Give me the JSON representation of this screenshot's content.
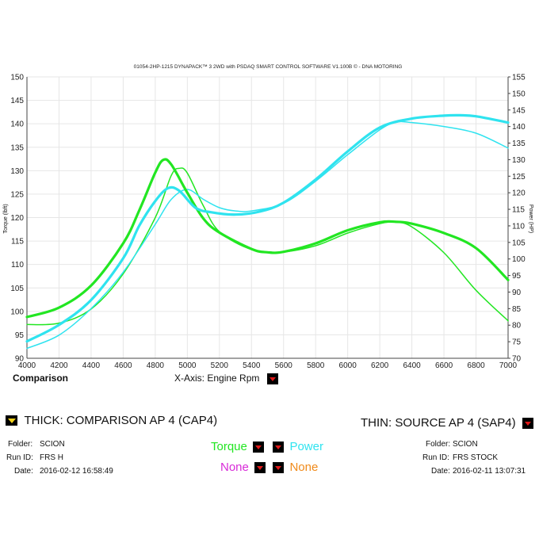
{
  "chart_data": {
    "type": "line",
    "title": "01054-2HP-1215 DYNAPACK™ 3 2WD with PSDAQ SMART CONTROL SOFTWARE V1.100B © - DNA MOTORING",
    "xlabel": "X-Axis: Engine Rpm",
    "ylabel_left": "Torque (lbft)",
    "ylabel_right": "Power (HP)",
    "xlim": [
      4000,
      7000
    ],
    "ylim_left": [
      90,
      150
    ],
    "ylim_right": [
      70,
      155
    ],
    "x_ticks": [
      4000,
      4200,
      4400,
      4600,
      4800,
      5000,
      5200,
      5400,
      5600,
      5800,
      6000,
      6200,
      6400,
      6600,
      6800,
      7000
    ],
    "y_ticks_left": [
      90,
      95,
      100,
      105,
      110,
      115,
      120,
      125,
      130,
      135,
      140,
      145,
      150
    ],
    "y_ticks_right": [
      70,
      75,
      80,
      85,
      90,
      95,
      100,
      105,
      110,
      115,
      120,
      125,
      130,
      135,
      140,
      145,
      150,
      155
    ],
    "grid": true,
    "series": [
      {
        "name": "Torque",
        "run": "CAP4",
        "axis": "left",
        "color": "#22e622",
        "thick": true,
        "x": [
          4000,
          4200,
          4400,
          4600,
          4700,
          4800,
          4850,
          4900,
          5000,
          5100,
          5200,
          5400,
          5500,
          5600,
          5800,
          6000,
          6200,
          6300,
          6400,
          6600,
          6800,
          7000
        ],
        "y": [
          98.8,
          100.8,
          105.5,
          114.5,
          121.5,
          129.6,
          132.3,
          131.3,
          125.3,
          119.8,
          116.8,
          113.3,
          112.6,
          112.7,
          114.5,
          117.3,
          119.0,
          119.1,
          118.7,
          116.7,
          113.5,
          106.7
        ]
      },
      {
        "name": "Power",
        "run": "CAP4",
        "axis": "right",
        "color": "#2fe3ef",
        "thick": true,
        "x": [
          4000,
          4200,
          4400,
          4600,
          4700,
          4800,
          4880,
          4950,
          5050,
          5150,
          5300,
          5450,
          5600,
          5800,
          6000,
          6200,
          6400,
          6600,
          6700,
          6800,
          7000
        ],
        "y": [
          75.1,
          80.1,
          87.6,
          100.2,
          110.0,
          117.5,
          121.4,
          120.6,
          115.5,
          114.1,
          113.4,
          114.3,
          117.0,
          124.0,
          132.5,
          139.7,
          142.4,
          143.3,
          143.4,
          143.1,
          141.2
        ]
      },
      {
        "name": "Torque",
        "run": "SAP4",
        "axis": "left",
        "color": "#22e622",
        "thick": false,
        "x": [
          4000,
          4200,
          4400,
          4600,
          4800,
          4900,
          4950,
          5000,
          5100,
          5200,
          5400,
          5600,
          5800,
          6000,
          6200,
          6300,
          6400,
          6600,
          6800,
          7000
        ],
        "y": [
          97.2,
          97.5,
          100.5,
          108.0,
          120.0,
          129.0,
          130.5,
          129.5,
          122.5,
          117.0,
          113.2,
          112.7,
          114.0,
          116.7,
          118.7,
          119.0,
          118.0,
          112.5,
          104.5,
          98.0
        ]
      },
      {
        "name": "Power",
        "run": "SAP4",
        "axis": "right",
        "color": "#2fe3ef",
        "thick": false,
        "x": [
          4000,
          4200,
          4400,
          4600,
          4800,
          4900,
          5000,
          5100,
          5200,
          5300,
          5400,
          5600,
          5800,
          6000,
          6200,
          6300,
          6400,
          6600,
          6800,
          7000
        ],
        "y": [
          73.0,
          77.0,
          85.0,
          96.0,
          110.5,
          118.0,
          121.0,
          118.0,
          115.5,
          114.5,
          114.5,
          116.8,
          123.5,
          131.5,
          139.0,
          141.3,
          141.2,
          140.0,
          138.0,
          133.5
        ]
      }
    ]
  },
  "ui": {
    "comparison_label": "Comparison",
    "xaxis_selector_label": "X-Axis: Engine Rpm",
    "thick_label": "THICK: COMPARISON AP 4 (CAP4)",
    "thin_label": "THIN: SOURCE AP 4 (SAP4)",
    "left_info": {
      "folder_label": "Folder:",
      "folder": "SCION",
      "runid_label": "Run ID:",
      "runid": "FRS H",
      "date_label": "Date:",
      "date": "2016-02-12 16:58:49"
    },
    "right_info": {
      "folder_label": "Folder:",
      "folder": "SCION",
      "runid_label": "Run ID:",
      "runid": "FRS STOCK",
      "date_label": "Date:",
      "date": "2016-02-11 13:07:31"
    },
    "selectors": {
      "torque": "Torque",
      "power": "Power",
      "none_left": "None",
      "none_right": "None"
    },
    "colors": {
      "torque": "#22e622",
      "power": "#2fe3ef",
      "none_left": "#d82ad8",
      "none_right": "#f08a1a",
      "dropdown_arrow": "#e01818",
      "yellow_arrow": "#f2d21b",
      "grid": "#e6e6e6"
    }
  }
}
